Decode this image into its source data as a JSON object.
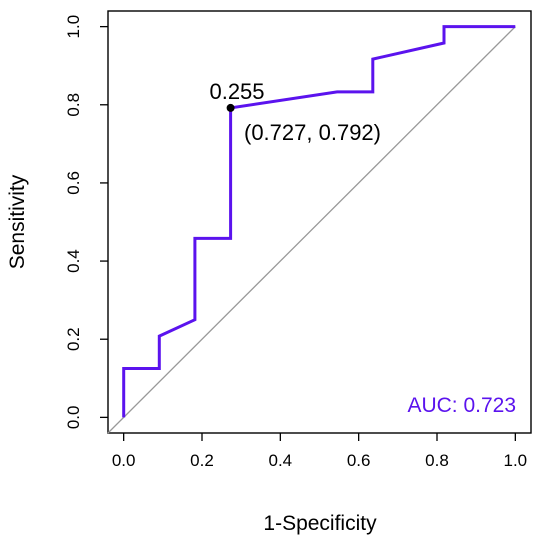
{
  "chart_data": {
    "type": "line",
    "xlabel": "1-Specificity",
    "ylabel": "Sensitivity",
    "xlim": [
      -0.04,
      1.04
    ],
    "ylim": [
      -0.04,
      1.04
    ],
    "x_ticks": [
      "0.0",
      "0.2",
      "0.4",
      "0.6",
      "0.8",
      "1.0"
    ],
    "y_ticks": [
      "0.0",
      "0.2",
      "0.4",
      "0.6",
      "0.8",
      "1.0"
    ],
    "grid": false,
    "series": [
      {
        "color": "#5b13ee",
        "x": [
          0.0,
          0.0,
          0.091,
          0.091,
          0.182,
          0.182,
          0.273,
          0.273,
          0.273,
          0.545,
          0.636,
          0.636,
          0.818,
          0.818,
          1.0
        ],
        "y": [
          0.0,
          0.125,
          0.125,
          0.208,
          0.25,
          0.458,
          0.458,
          0.583,
          0.792,
          0.833,
          0.833,
          0.917,
          0.958,
          1.0,
          1.0
        ]
      }
    ],
    "reference_line": {
      "x": [
        -0.04,
        1.0
      ],
      "y": [
        -0.04,
        1.0
      ],
      "color": "#999999"
    },
    "point": {
      "x": 0.273,
      "y": 0.792
    },
    "annotations": {
      "threshold": "0.255",
      "coords": "(0.727, 0.792)",
      "auc": "AUC: 0.723",
      "auc_color": "#5b13ee"
    }
  }
}
